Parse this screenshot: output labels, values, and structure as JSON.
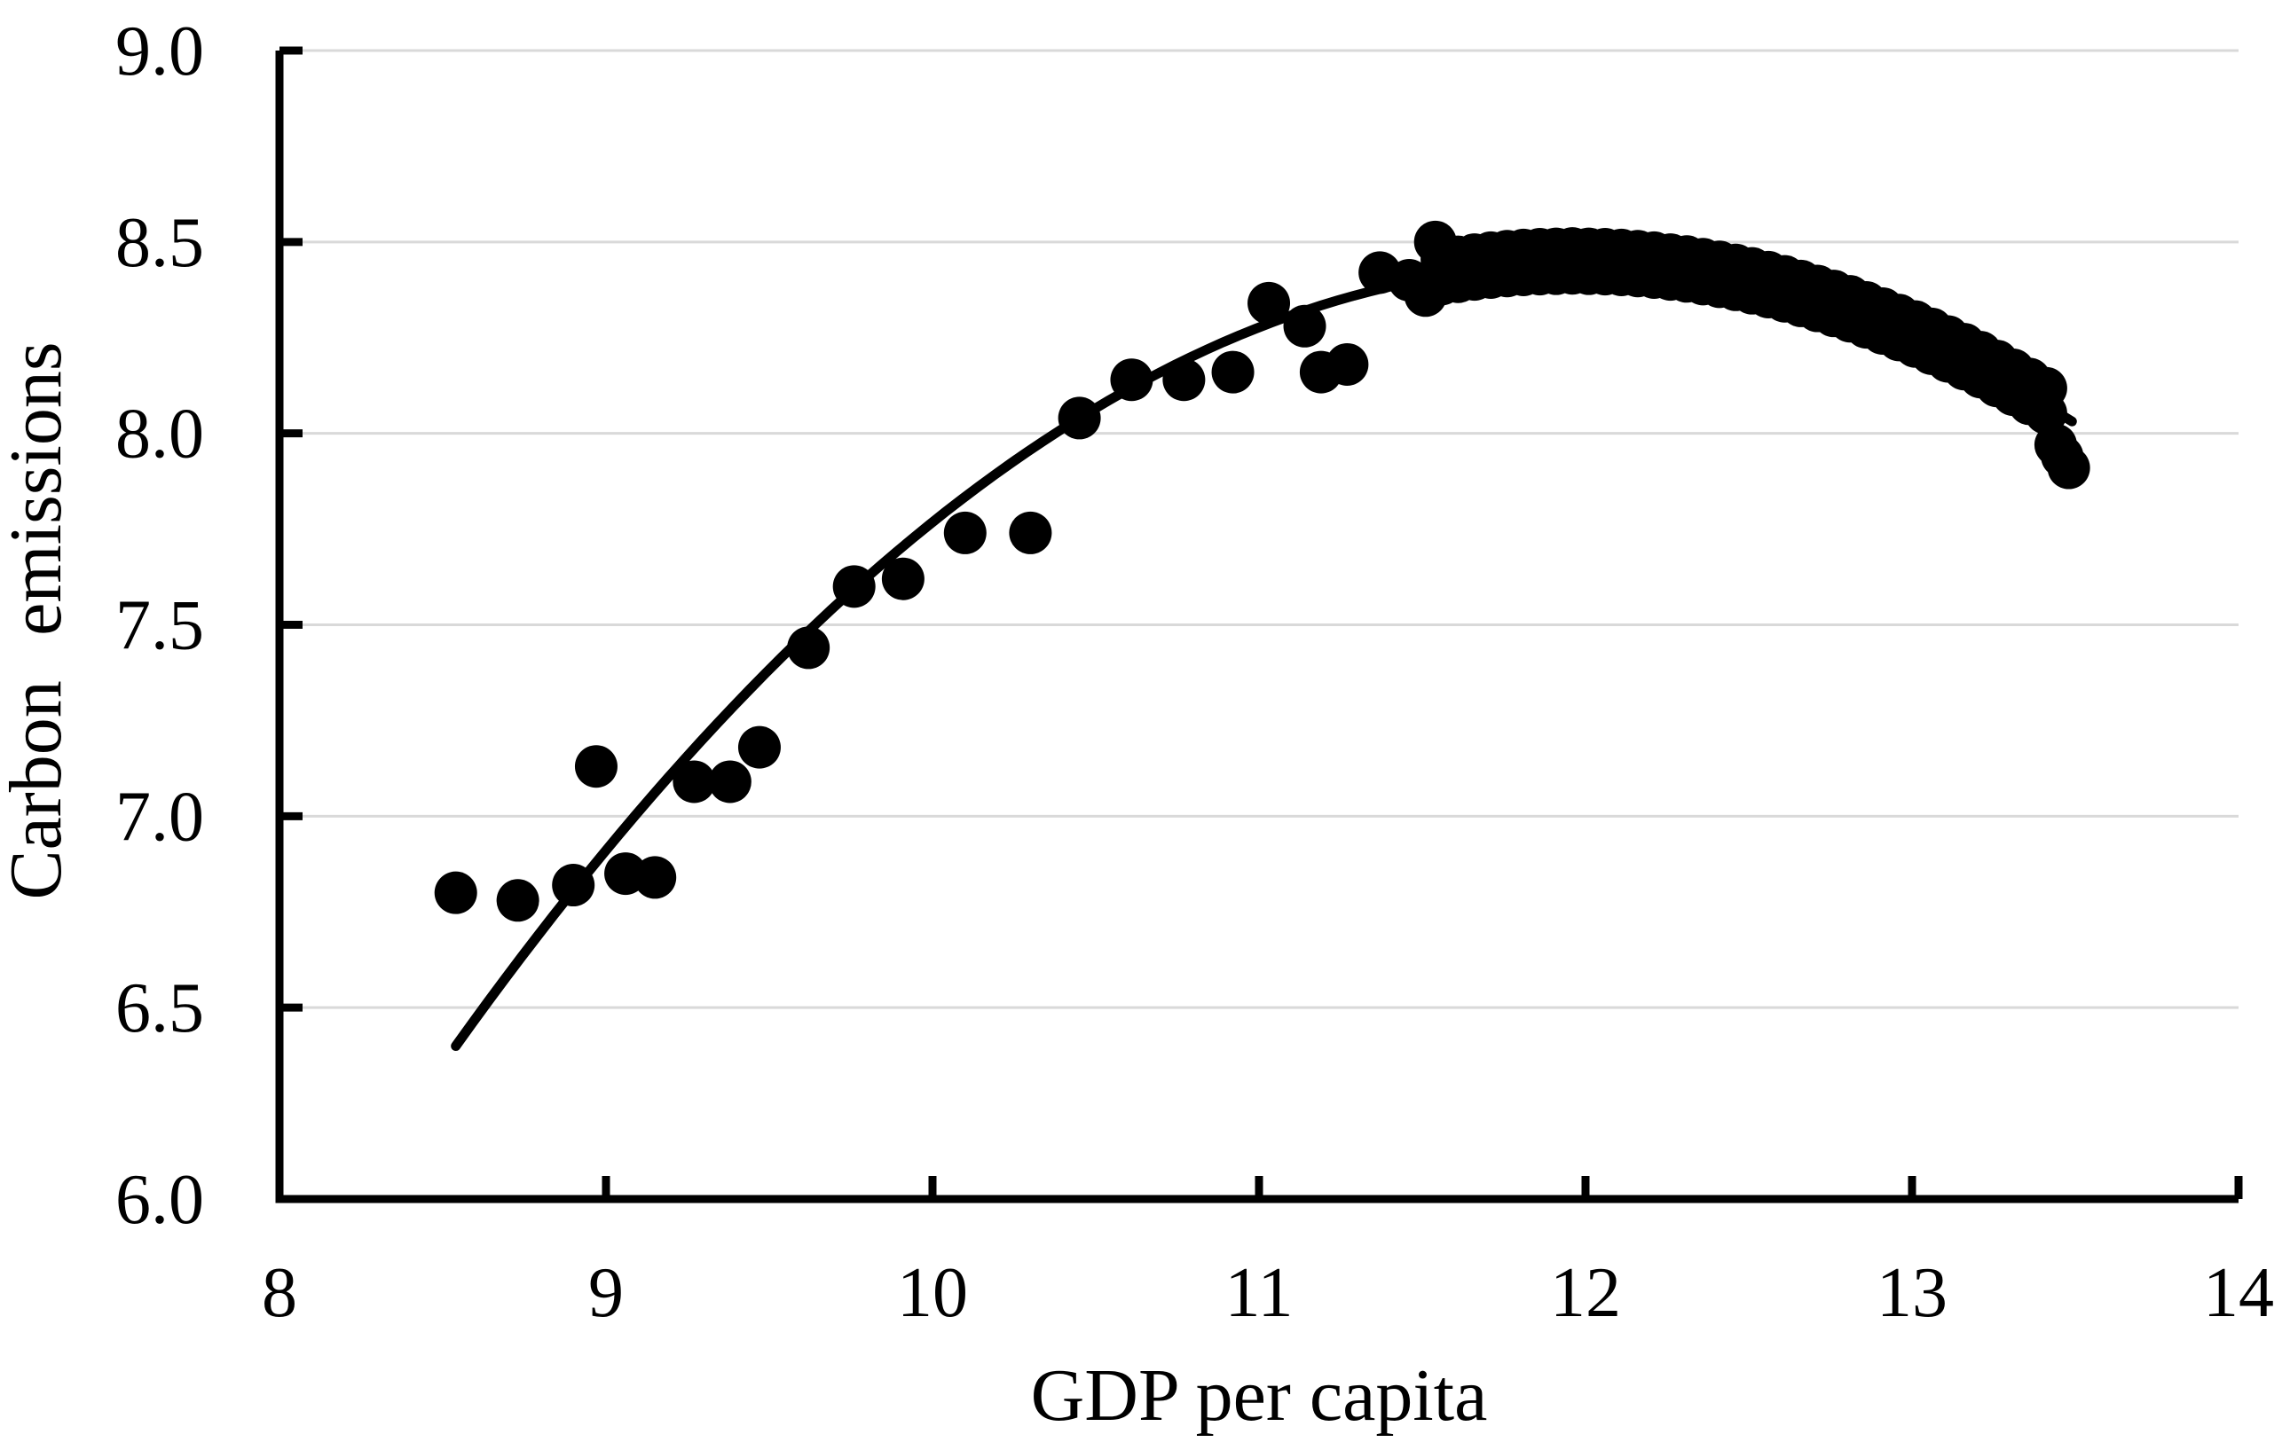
{
  "figure": {
    "background_color": "#ffffff",
    "text_color": "#000000"
  },
  "chart_data": {
    "type": "scatter",
    "title": "",
    "xlabel": "GDP per capita",
    "ylabel": "Carbon emissions",
    "xlim": [
      8,
      14
    ],
    "ylim": [
      6.0,
      9.0
    ],
    "x_ticks": [
      "8",
      "9",
      "10",
      "11",
      "12",
      "13",
      "14"
    ],
    "y_ticks": [
      "9.0",
      "8.5",
      "8.0",
      "7.5",
      "7.0",
      "6.5",
      "6.0"
    ],
    "grid": "horizontal-only",
    "legend": "none",
    "marker_color": "#000000",
    "curve_color": "#000000",
    "axis_color": "#000000",
    "grid_color": "#d9d9d9",
    "points": [
      [
        8.54,
        6.8
      ],
      [
        8.73,
        6.78
      ],
      [
        8.9,
        6.82
      ],
      [
        9.06,
        6.85
      ],
      [
        9.15,
        6.84
      ],
      [
        8.97,
        7.13
      ],
      [
        9.27,
        7.09
      ],
      [
        9.38,
        7.09
      ],
      [
        9.47,
        7.18
      ],
      [
        9.62,
        7.44
      ],
      [
        9.76,
        7.6
      ],
      [
        9.91,
        7.62
      ],
      [
        10.1,
        7.74
      ],
      [
        10.3,
        7.74
      ],
      [
        10.45,
        8.04
      ],
      [
        10.61,
        8.14
      ],
      [
        10.77,
        8.14
      ],
      [
        10.92,
        8.16
      ],
      [
        11.03,
        8.34
      ],
      [
        11.14,
        8.28
      ],
      [
        11.19,
        8.16
      ],
      [
        11.27,
        8.18
      ],
      [
        11.37,
        8.42
      ],
      [
        11.46,
        8.4
      ],
      [
        11.51,
        8.36
      ],
      [
        11.54,
        8.5
      ]
    ],
    "dense_band_points": [
      [
        11.56,
        8.455
      ],
      [
        11.61,
        8.461
      ],
      [
        11.66,
        8.467
      ],
      [
        11.71,
        8.472
      ],
      [
        11.76,
        8.476
      ],
      [
        11.81,
        8.479
      ],
      [
        11.86,
        8.481
      ],
      [
        11.91,
        8.482
      ],
      [
        11.96,
        8.483
      ],
      [
        12.01,
        8.482
      ],
      [
        12.06,
        8.481
      ],
      [
        12.11,
        8.479
      ],
      [
        12.16,
        8.476
      ],
      [
        12.21,
        8.472
      ],
      [
        12.26,
        8.467
      ],
      [
        12.31,
        8.462
      ],
      [
        12.36,
        8.455
      ],
      [
        12.41,
        8.448
      ],
      [
        12.46,
        8.44
      ],
      [
        12.51,
        8.431
      ],
      [
        12.56,
        8.421
      ],
      [
        12.61,
        8.41
      ],
      [
        12.66,
        8.398
      ],
      [
        12.71,
        8.385
      ],
      [
        12.76,
        8.372
      ],
      [
        12.81,
        8.358
      ],
      [
        12.86,
        8.342
      ],
      [
        12.91,
        8.326
      ],
      [
        12.96,
        8.309
      ],
      [
        13.01,
        8.292
      ],
      [
        13.06,
        8.273
      ],
      [
        13.11,
        8.253
      ],
      [
        13.16,
        8.233
      ],
      [
        13.21,
        8.212
      ],
      [
        13.26,
        8.189
      ],
      [
        13.31,
        8.166
      ],
      [
        13.36,
        8.142
      ],
      [
        13.41,
        8.118
      ],
      [
        11.56,
        8.39
      ],
      [
        11.61,
        8.396
      ],
      [
        11.66,
        8.402
      ],
      [
        11.71,
        8.407
      ],
      [
        11.76,
        8.411
      ],
      [
        11.81,
        8.414
      ],
      [
        11.86,
        8.416
      ],
      [
        11.91,
        8.417
      ],
      [
        11.96,
        8.418
      ],
      [
        12.01,
        8.417
      ],
      [
        12.06,
        8.416
      ],
      [
        12.11,
        8.414
      ],
      [
        12.16,
        8.411
      ],
      [
        12.21,
        8.407
      ],
      [
        12.26,
        8.402
      ],
      [
        12.31,
        8.397
      ],
      [
        12.36,
        8.39
      ],
      [
        12.41,
        8.383
      ],
      [
        12.46,
        8.375
      ],
      [
        12.51,
        8.366
      ],
      [
        12.56,
        8.356
      ],
      [
        12.61,
        8.345
      ],
      [
        12.66,
        8.333
      ],
      [
        12.71,
        8.32
      ],
      [
        12.76,
        8.307
      ],
      [
        12.81,
        8.293
      ],
      [
        12.86,
        8.277
      ],
      [
        12.91,
        8.261
      ],
      [
        12.96,
        8.244
      ],
      [
        13.01,
        8.227
      ],
      [
        13.06,
        8.208
      ],
      [
        13.11,
        8.188
      ],
      [
        13.16,
        8.168
      ],
      [
        13.21,
        8.147
      ],
      [
        13.26,
        8.124
      ],
      [
        13.31,
        8.101
      ],
      [
        13.36,
        8.077
      ],
      [
        13.41,
        8.053
      ],
      [
        13.44,
        7.97
      ],
      [
        13.46,
        7.94
      ],
      [
        13.48,
        7.91
      ]
    ],
    "fit_curve": {
      "type": "quadratic",
      "equation": "y = a*x^2 + b*x + c",
      "a": -0.1741,
      "b": 4.165,
      "c": -16.472,
      "x_min": 8.54,
      "x_max": 13.49,
      "peak": [
        11.96,
        8.44
      ]
    }
  }
}
